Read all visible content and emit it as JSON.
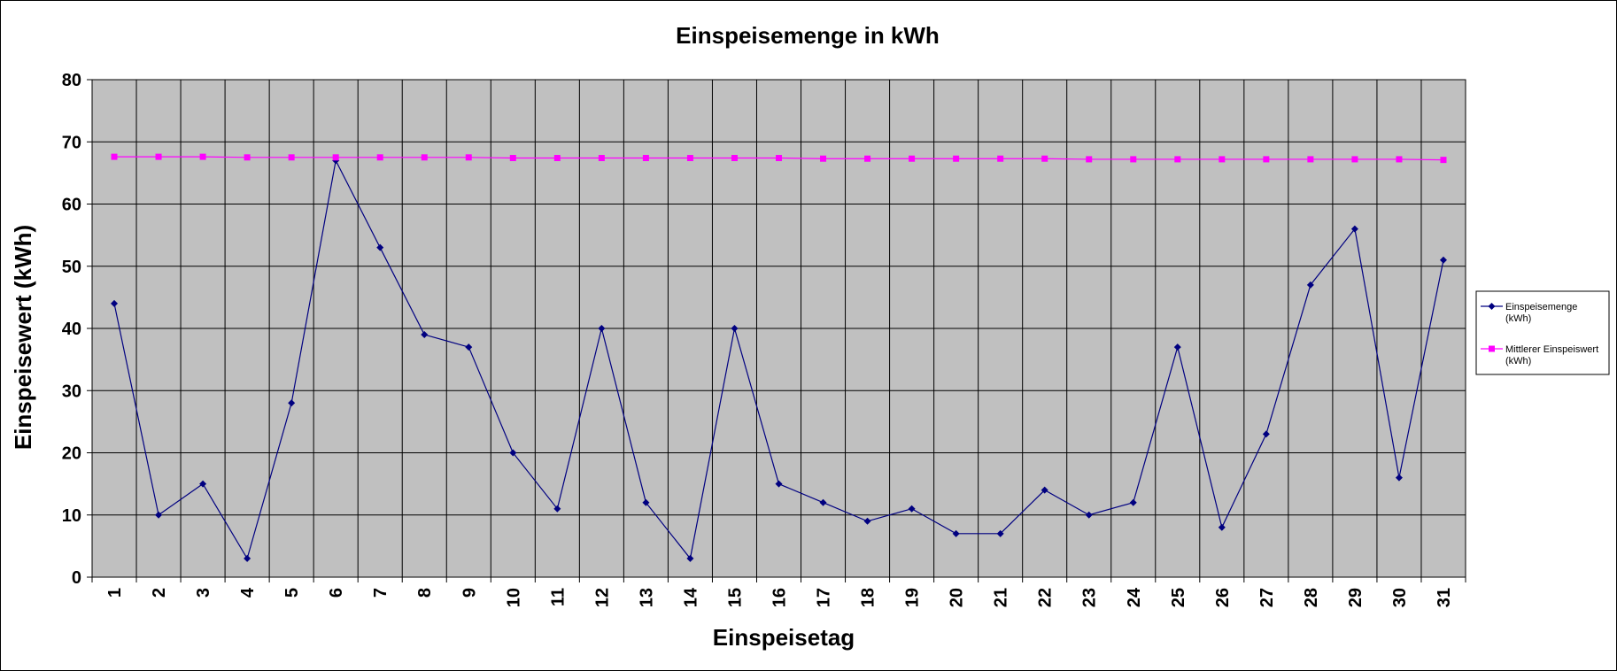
{
  "chart_data": {
    "type": "line",
    "title": "Einspeisemenge in kWh",
    "xlabel": "Einspeisetag",
    "ylabel": "Einspeisewert  (kWh)",
    "ylim": [
      0,
      80
    ],
    "yticks": [
      "0",
      "10",
      "20",
      "30",
      "40",
      "50",
      "60",
      "70",
      "80"
    ],
    "grid": true,
    "legend_position": "right",
    "plot_background": "#c0c0c0",
    "categories": [
      "1",
      "2",
      "3",
      "4",
      "5",
      "6",
      "7",
      "8",
      "9",
      "10",
      "11",
      "12",
      "13",
      "14",
      "15",
      "16",
      "17",
      "18",
      "19",
      "20",
      "21",
      "22",
      "23",
      "24",
      "25",
      "26",
      "27",
      "28",
      "29",
      "30",
      "31"
    ],
    "series": [
      {
        "name": "Einspeisemenge (kWh)",
        "legend_lines": [
          "Einspeisemenge",
          "(kWh)"
        ],
        "color": "#000080",
        "marker": "diamond",
        "values": [
          44,
          10,
          15,
          3,
          28,
          67,
          53,
          39,
          37,
          20,
          11,
          40,
          12,
          3,
          40,
          15,
          12,
          9,
          11,
          7,
          7,
          14,
          10,
          12,
          37,
          8,
          23,
          47,
          56,
          16,
          51
        ]
      },
      {
        "name": "Mittlerer Einspeiswert (kWh)",
        "legend_lines": [
          "Mittlerer Einspeiswert",
          "(kWh)"
        ],
        "color": "#ff00ff",
        "marker": "square",
        "values": [
          67.6,
          67.6,
          67.6,
          67.5,
          67.5,
          67.5,
          67.5,
          67.5,
          67.5,
          67.4,
          67.4,
          67.4,
          67.4,
          67.4,
          67.4,
          67.4,
          67.3,
          67.3,
          67.3,
          67.3,
          67.3,
          67.3,
          67.2,
          67.2,
          67.2,
          67.2,
          67.2,
          67.2,
          67.2,
          67.2,
          67.1
        ]
      }
    ]
  }
}
